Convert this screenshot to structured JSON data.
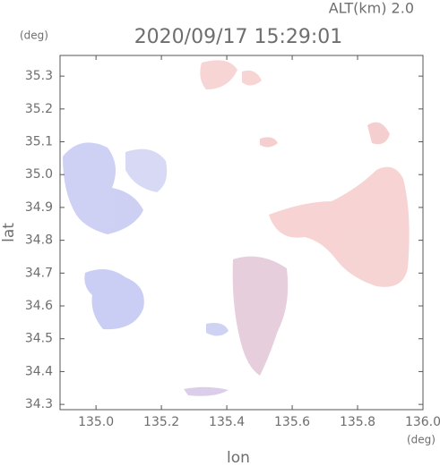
{
  "chart_data": {
    "type": "map",
    "title": "2020/09/17 15:29:01",
    "subtitle": "ALT(km) 2.0",
    "y_unit": "(deg)",
    "x_unit": "(deg)",
    "xlabel": "lon",
    "ylabel": "lat",
    "xlim": [
      134.89,
      136.0
    ],
    "ylim": [
      34.284,
      35.363
    ],
    "xticks": [
      {
        "value": 135.0,
        "label": "135.0"
      },
      135.2,
      135.4,
      135.6,
      135.8,
      {
        "value": 136.0,
        "label": "136.0"
      }
    ],
    "yticks": [
      34.3,
      34.4,
      34.5,
      34.6,
      34.7,
      34.8,
      34.9,
      {
        "value": 35.0,
        "label": "35.0"
      },
      35.1,
      35.2,
      35.3
    ]
  }
}
